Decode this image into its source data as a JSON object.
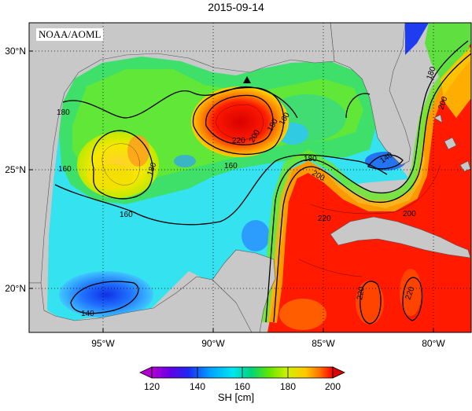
{
  "title": "2015-09-14",
  "credit": "NOAA/AOML",
  "map": {
    "lat_ticks": [
      "30°N",
      "25°N",
      "20°N"
    ],
    "lon_ticks": [
      "95°W",
      "90°W",
      "85°W",
      "80°W"
    ],
    "contour_labels": [
      "180",
      "160",
      "180",
      "160",
      "220",
      "200",
      "180",
      "160",
      "180",
      "200",
      "140",
      "220",
      "200",
      "220",
      "220",
      "200",
      "180",
      "160",
      "140"
    ],
    "land_color": "#c8c8c8",
    "marker": "triangle"
  },
  "colorbar": {
    "ticks": [
      "120",
      "140",
      "160",
      "180",
      "200"
    ],
    "extra_tick": "200",
    "label": "SH [cm]",
    "colors": [
      "#b400d2",
      "#6400e6",
      "#1e28f0",
      "#00a0ff",
      "#00e6f0",
      "#00d278",
      "#64e600",
      "#d2f000",
      "#ffc800",
      "#ff6e00",
      "#ff0000"
    ]
  }
}
